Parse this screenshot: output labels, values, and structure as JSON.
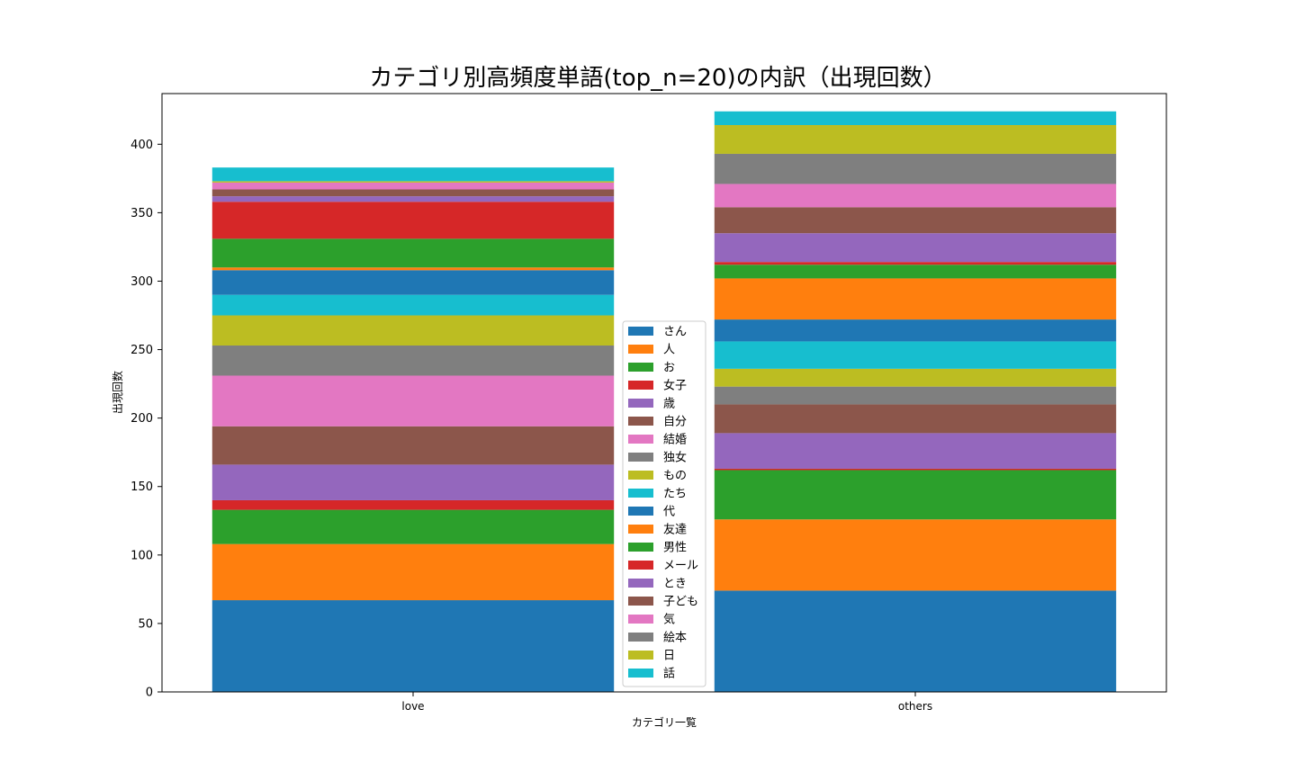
{
  "chart_data": {
    "type": "bar",
    "stacked": true,
    "title": "カテゴリ別高頻度単語(top_n=20)の内訳（出現回数）",
    "xlabel": "カテゴリ一覧",
    "ylabel": "出現回数",
    "categories": [
      "love",
      "others"
    ],
    "ylim": [
      0,
      437
    ],
    "yticks": [
      0,
      50,
      100,
      150,
      200,
      250,
      300,
      350,
      400
    ],
    "legend_position": "bottom-center",
    "series": [
      {
        "name": "さん",
        "color": "#1f77b4",
        "values": [
          67,
          74
        ]
      },
      {
        "name": "人",
        "color": "#ff7f0e",
        "values": [
          41,
          52
        ]
      },
      {
        "name": "お",
        "color": "#2ca02c",
        "values": [
          25,
          36
        ]
      },
      {
        "name": "女子",
        "color": "#d62728",
        "values": [
          7,
          1
        ]
      },
      {
        "name": "歳",
        "color": "#9467bd",
        "values": [
          26,
          26
        ]
      },
      {
        "name": "自分",
        "color": "#8c564b",
        "values": [
          28,
          21
        ]
      },
      {
        "name": "結婚",
        "color": "#e377c2",
        "values": [
          37,
          0
        ]
      },
      {
        "name": "独女",
        "color": "#7f7f7f",
        "values": [
          22,
          13
        ]
      },
      {
        "name": "もの",
        "color": "#bcbd22",
        "values": [
          22,
          13
        ]
      },
      {
        "name": "たち",
        "color": "#17becf",
        "values": [
          15,
          20
        ]
      },
      {
        "name": "代",
        "color": "#1f77b4",
        "values": [
          18,
          16
        ]
      },
      {
        "name": "友達",
        "color": "#ff7f0e",
        "values": [
          2,
          30
        ]
      },
      {
        "name": "男性",
        "color": "#2ca02c",
        "values": [
          21,
          10
        ]
      },
      {
        "name": "メール",
        "color": "#d62728",
        "values": [
          27,
          2
        ]
      },
      {
        "name": "とき",
        "color": "#9467bd",
        "values": [
          4,
          21
        ]
      },
      {
        "name": "子ども",
        "color": "#8c564b",
        "values": [
          5,
          19
        ]
      },
      {
        "name": "気",
        "color": "#e377c2",
        "values": [
          5,
          17
        ]
      },
      {
        "name": "絵本",
        "color": "#7f7f7f",
        "values": [
          0,
          22
        ]
      },
      {
        "name": "日",
        "color": "#bcbd22",
        "values": [
          1,
          21
        ]
      },
      {
        "name": "話",
        "color": "#17becf",
        "values": [
          10,
          10
        ]
      }
    ]
  }
}
